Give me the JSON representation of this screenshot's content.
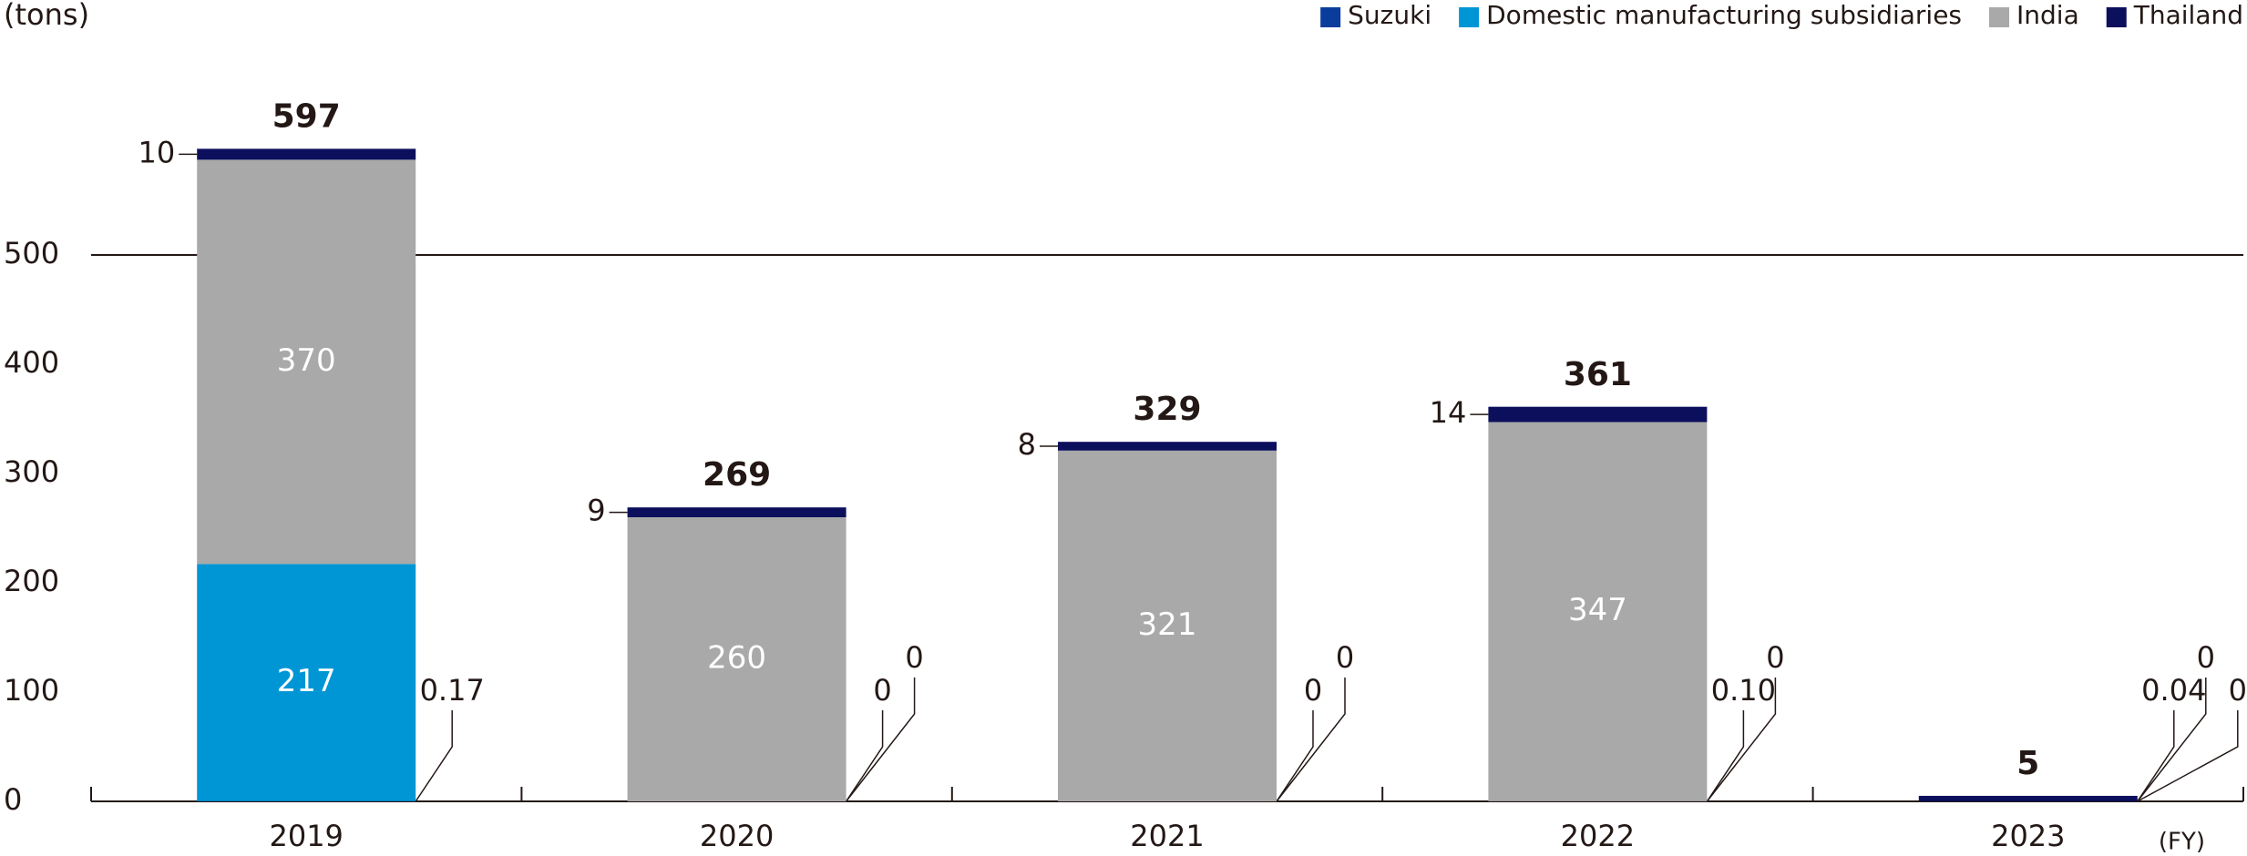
{
  "chart_data": {
    "type": "bar",
    "stacked": true,
    "unit_label": "(tons)",
    "x_unit_label": "(FY)",
    "categories": [
      "2019",
      "2020",
      "2021",
      "2022",
      "2023"
    ],
    "series": [
      {
        "name": "Suzuki",
        "color": "#0a3c9c",
        "values": [
          0.17,
          0,
          0,
          0.1,
          0.04
        ],
        "value_labels": [
          "0.17",
          "0",
          "0",
          "0.10",
          "0.04"
        ]
      },
      {
        "name": "Domestic manufacturing subsidiaries",
        "color": "#0096d6",
        "values": [
          217,
          0,
          0,
          0,
          0
        ],
        "value_labels": [
          "217",
          "0",
          "0",
          "0",
          "0"
        ]
      },
      {
        "name": "India",
        "color": "#a8a9a8",
        "values": [
          370,
          260,
          321,
          347,
          0
        ],
        "value_labels": [
          "370",
          "260",
          "321",
          "347",
          "0"
        ]
      },
      {
        "name": "Thailand",
        "color": "#0b0f5c",
        "values": [
          10,
          9,
          8,
          14,
          5
        ],
        "value_labels": [
          "10",
          "9",
          "8",
          "14",
          null
        ]
      }
    ],
    "totals": [
      597,
      269,
      329,
      361,
      5
    ],
    "ylim": [
      0,
      650
    ],
    "yticks": [
      0,
      100,
      200,
      300,
      400,
      500
    ]
  }
}
